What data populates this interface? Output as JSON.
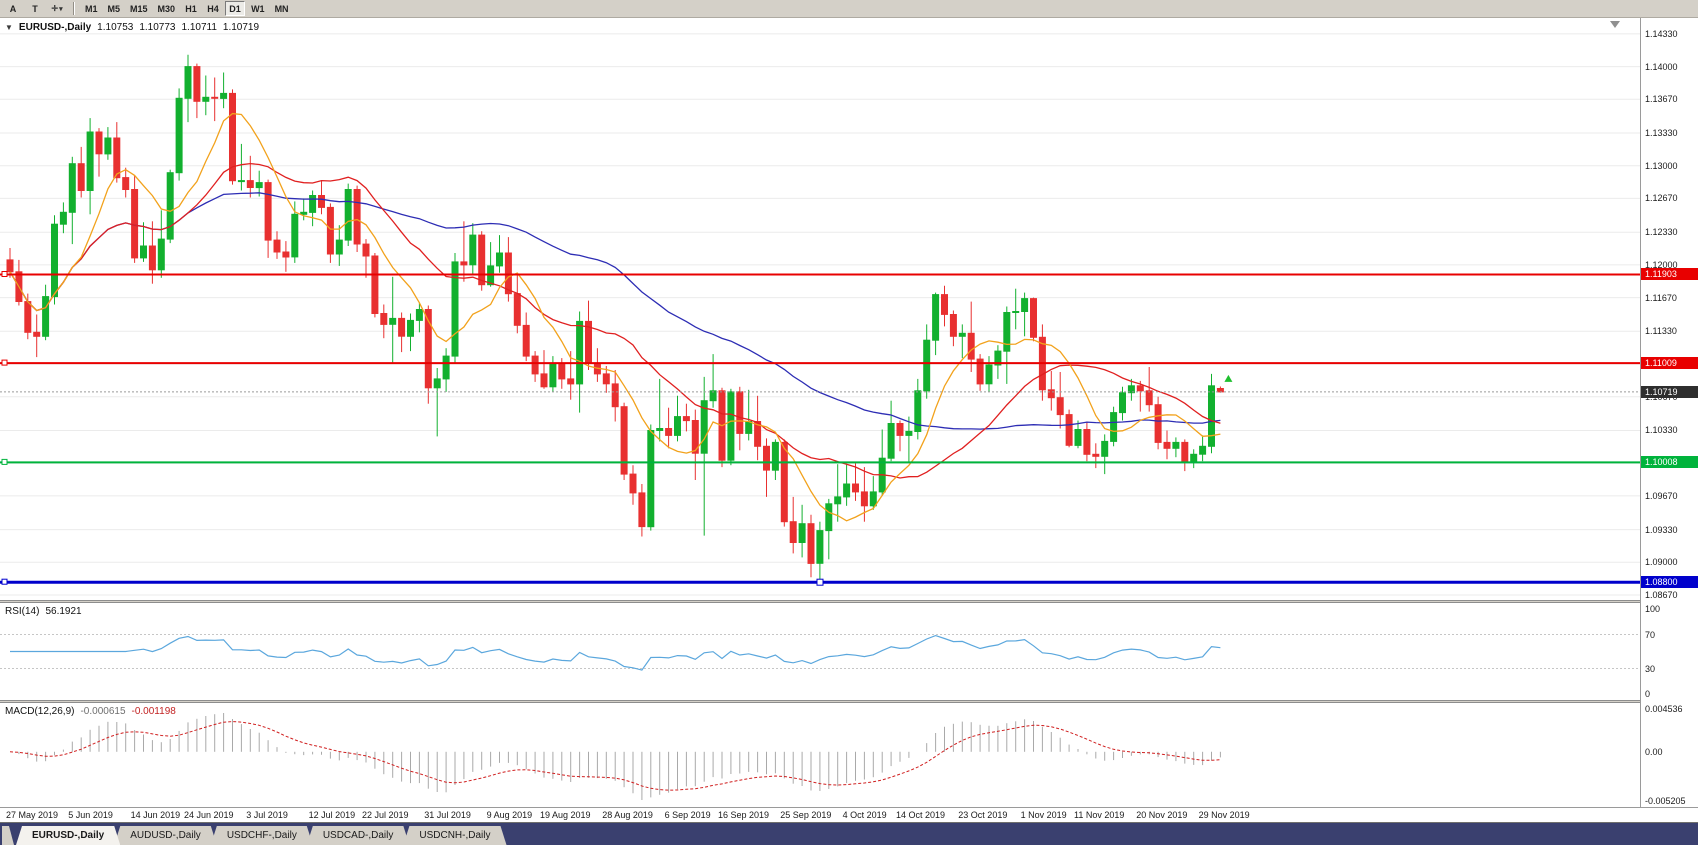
{
  "toolbar": {
    "buttons": [
      "A",
      "T"
    ],
    "timeframes": [
      "M1",
      "M5",
      "M15",
      "M30",
      "H1",
      "H4",
      "D1",
      "W1",
      "MN"
    ],
    "active_timeframe": "D1"
  },
  "chart": {
    "symbol_label": "EURUSD-,Daily",
    "ohlc": {
      "open": "1.10753",
      "high": "1.10773",
      "low": "1.10711",
      "close": "1.10719"
    },
    "up_color": "#12b02f",
    "down_color": "#e83030",
    "axis": {
      "max": 1.1449,
      "min": 1.0862,
      "ticks": [
        "1.14330",
        "1.14000",
        "1.13670",
        "1.13330",
        "1.13000",
        "1.12670",
        "1.12330",
        "1.12000",
        "1.11670",
        "1.11330",
        "1.11000",
        "1.10670",
        "1.10330",
        "1.10000",
        "1.09670",
        "1.09330",
        "1.09000",
        "1.08670"
      ]
    },
    "current_price": {
      "value": 1.10719,
      "label": "1.10719",
      "box_color": "#2e2e2e"
    },
    "hlines": [
      {
        "price": 1.11903,
        "label": "1.11903",
        "color": "#e80000",
        "stroke": 2,
        "handles": false
      },
      {
        "price": 1.11009,
        "label": "1.11009",
        "color": "#e80000",
        "stroke": 2,
        "handles": false
      },
      {
        "price": 1.10008,
        "label": "1.10008",
        "color": "#00b33c",
        "stroke": 2,
        "handles": false
      },
      {
        "price": 1.088,
        "label": "1.08800",
        "color": "#0000cc",
        "stroke": 3,
        "handles": true
      }
    ],
    "ma": [
      {
        "name": "ma-slow",
        "period": 50,
        "color": "#2d2db4"
      },
      {
        "name": "ma-mid",
        "period": 21,
        "color": "#e02020"
      },
      {
        "name": "ma-fast",
        "period": 8,
        "color": "#f2a21c"
      }
    ],
    "marker": {
      "index": 136.9,
      "price": 1.1085,
      "color": "#1fbf2f"
    },
    "candles": [
      [
        1.1205,
        1.1217,
        1.1187,
        1.1193
      ],
      [
        1.1193,
        1.1205,
        1.1159,
        1.1163
      ],
      [
        1.1163,
        1.1171,
        1.1125,
        1.1132
      ],
      [
        1.1132,
        1.115,
        1.1107,
        1.1128
      ],
      [
        1.1128,
        1.118,
        1.1124,
        1.1168
      ],
      [
        1.1168,
        1.125,
        1.116,
        1.1241
      ],
      [
        1.1241,
        1.1263,
        1.1232,
        1.1253
      ],
      [
        1.1253,
        1.1309,
        1.1221,
        1.1302
      ],
      [
        1.1302,
        1.1319,
        1.1268,
        1.1275
      ],
      [
        1.1275,
        1.1348,
        1.1251,
        1.1334
      ],
      [
        1.1334,
        1.1338,
        1.1289,
        1.1312
      ],
      [
        1.1312,
        1.1339,
        1.1306,
        1.1328
      ],
      [
        1.1328,
        1.1344,
        1.1283,
        1.1288
      ],
      [
        1.1288,
        1.1298,
        1.1268,
        1.1276
      ],
      [
        1.1276,
        1.129,
        1.1202,
        1.1207
      ],
      [
        1.1207,
        1.1243,
        1.1203,
        1.1219
      ],
      [
        1.1219,
        1.1244,
        1.1181,
        1.1195
      ],
      [
        1.1195,
        1.1255,
        1.1187,
        1.1226
      ],
      [
        1.1226,
        1.1296,
        1.1222,
        1.1293
      ],
      [
        1.1293,
        1.1378,
        1.1285,
        1.1368
      ],
      [
        1.1368,
        1.1412,
        1.1344,
        1.14
      ],
      [
        1.14,
        1.1403,
        1.1348,
        1.1365
      ],
      [
        1.1365,
        1.1391,
        1.1351,
        1.1369
      ],
      [
        1.1369,
        1.1389,
        1.1345,
        1.1368
      ],
      [
        1.1368,
        1.1394,
        1.1358,
        1.1373
      ],
      [
        1.1373,
        1.1377,
        1.1281,
        1.1285
      ],
      [
        1.1285,
        1.1322,
        1.1275,
        1.1285
      ],
      [
        1.1285,
        1.131,
        1.1268,
        1.1278
      ],
      [
        1.1278,
        1.1295,
        1.1269,
        1.1283
      ],
      [
        1.1283,
        1.1286,
        1.1207,
        1.1225
      ],
      [
        1.1225,
        1.1234,
        1.1206,
        1.1213
      ],
      [
        1.1213,
        1.1224,
        1.1193,
        1.1208
      ],
      [
        1.1208,
        1.1264,
        1.1202,
        1.1251
      ],
      [
        1.1251,
        1.1267,
        1.1245,
        1.1253
      ],
      [
        1.1253,
        1.1275,
        1.1239,
        1.127
      ],
      [
        1.127,
        1.1285,
        1.1251,
        1.1258
      ],
      [
        1.1258,
        1.1262,
        1.1202,
        1.1211
      ],
      [
        1.1211,
        1.124,
        1.1199,
        1.1225
      ],
      [
        1.1225,
        1.1282,
        1.1219,
        1.1276
      ],
      [
        1.1276,
        1.128,
        1.1213,
        1.1221
      ],
      [
        1.1221,
        1.1226,
        1.1187,
        1.1209
      ],
      [
        1.1209,
        1.1212,
        1.1147,
        1.1151
      ],
      [
        1.1151,
        1.116,
        1.1126,
        1.114
      ],
      [
        1.114,
        1.1188,
        1.1101,
        1.1146
      ],
      [
        1.1146,
        1.1152,
        1.1112,
        1.1128
      ],
      [
        1.1128,
        1.1151,
        1.1113,
        1.1144
      ],
      [
        1.1144,
        1.1162,
        1.1132,
        1.1155
      ],
      [
        1.1155,
        1.1159,
        1.106,
        1.1076
      ],
      [
        1.1076,
        1.1096,
        1.1027,
        1.1085
      ],
      [
        1.1085,
        1.1116,
        1.1072,
        1.1108
      ],
      [
        1.1108,
        1.1212,
        1.1101,
        1.1203
      ],
      [
        1.1203,
        1.1244,
        1.1183,
        1.12
      ],
      [
        1.12,
        1.1242,
        1.1191,
        1.123
      ],
      [
        1.123,
        1.1234,
        1.1174,
        1.118
      ],
      [
        1.118,
        1.1223,
        1.1178,
        1.1199
      ],
      [
        1.1199,
        1.123,
        1.1192,
        1.1212
      ],
      [
        1.1212,
        1.1228,
        1.1163,
        1.1171
      ],
      [
        1.1171,
        1.119,
        1.1131,
        1.1139
      ],
      [
        1.1139,
        1.1152,
        1.1103,
        1.1108
      ],
      [
        1.1108,
        1.1113,
        1.1082,
        1.109
      ],
      [
        1.109,
        1.1114,
        1.1075,
        1.1077
      ],
      [
        1.1077,
        1.1108,
        1.1072,
        1.11
      ],
      [
        1.11,
        1.1106,
        1.1075,
        1.1085
      ],
      [
        1.1085,
        1.1113,
        1.1064,
        1.108
      ],
      [
        1.108,
        1.1153,
        1.1051,
        1.1143
      ],
      [
        1.1143,
        1.1164,
        1.1094,
        1.1101
      ],
      [
        1.1101,
        1.1116,
        1.1082,
        1.109
      ],
      [
        1.109,
        1.1098,
        1.1071,
        1.108
      ],
      [
        1.108,
        1.1094,
        1.1042,
        1.1057
      ],
      [
        1.1057,
        1.1061,
        1.0983,
        1.0989
      ],
      [
        1.0989,
        1.0998,
        1.0958,
        1.097
      ],
      [
        1.097,
        1.0979,
        1.0926,
        1.0936
      ],
      [
        1.0936,
        1.1039,
        1.0932,
        1.1033
      ],
      [
        1.1033,
        1.1085,
        1.1022,
        1.1035
      ],
      [
        1.1035,
        1.1056,
        1.1015,
        1.1028
      ],
      [
        1.1028,
        1.1068,
        1.1022,
        1.1047
      ],
      [
        1.1047,
        1.106,
        1.1032,
        1.1043
      ],
      [
        1.1043,
        1.1054,
        1.0983,
        1.101
      ],
      [
        1.101,
        1.1087,
        1.0927,
        1.1063
      ],
      [
        1.1063,
        1.111,
        1.1056,
        1.1073
      ],
      [
        1.1073,
        1.1076,
        1.0996,
        1.1003
      ],
      [
        1.1003,
        1.1075,
        1.0998,
        1.1072
      ],
      [
        1.1072,
        1.1077,
        1.1013,
        1.103
      ],
      [
        1.103,
        1.1074,
        1.1023,
        1.1042
      ],
      [
        1.1042,
        1.1068,
        1.1003,
        1.1017
      ],
      [
        1.1017,
        1.1025,
        1.0966,
        1.0993
      ],
      [
        1.0993,
        1.1024,
        1.0983,
        1.1021
      ],
      [
        1.1021,
        1.1024,
        1.0936,
        1.0941
      ],
      [
        1.0941,
        1.0966,
        1.0909,
        1.092
      ],
      [
        1.092,
        1.0958,
        1.0905,
        1.0939
      ],
      [
        1.0939,
        1.0948,
        1.0885,
        1.0899
      ],
      [
        1.0899,
        1.0941,
        1.0879,
        1.0932
      ],
      [
        1.0932,
        1.0964,
        1.0903,
        1.0959
      ],
      [
        1.0959,
        1.0999,
        1.0941,
        1.0966
      ],
      [
        1.0966,
        1.0999,
        1.0957,
        1.0979
      ],
      [
        1.0979,
        1.1,
        1.0962,
        1.0971
      ],
      [
        1.0971,
        1.0996,
        1.0941,
        1.0957
      ],
      [
        1.0957,
        1.0987,
        1.0953,
        1.0971
      ],
      [
        1.0971,
        1.1034,
        1.0967,
        1.1005
      ],
      [
        1.1005,
        1.1063,
        1.1002,
        1.104
      ],
      [
        1.104,
        1.1043,
        1.1012,
        1.1028
      ],
      [
        1.1028,
        1.1047,
        1.1001,
        1.1032
      ],
      [
        1.1032,
        1.1085,
        1.1024,
        1.1073
      ],
      [
        1.1073,
        1.114,
        1.1065,
        1.1124
      ],
      [
        1.1124,
        1.1172,
        1.1109,
        1.117
      ],
      [
        1.117,
        1.1179,
        1.1138,
        1.115
      ],
      [
        1.115,
        1.1154,
        1.1118,
        1.1128
      ],
      [
        1.1128,
        1.114,
        1.1106,
        1.1131
      ],
      [
        1.1131,
        1.1163,
        1.1092,
        1.1105
      ],
      [
        1.1105,
        1.111,
        1.1073,
        1.108
      ],
      [
        1.108,
        1.1108,
        1.1072,
        1.1099
      ],
      [
        1.1099,
        1.1119,
        1.1085,
        1.1113
      ],
      [
        1.1113,
        1.1158,
        1.108,
        1.1152
      ],
      [
        1.1152,
        1.1176,
        1.1135,
        1.1153
      ],
      [
        1.1153,
        1.1172,
        1.1128,
        1.1166
      ],
      [
        1.1166,
        1.1167,
        1.1123,
        1.1127
      ],
      [
        1.1127,
        1.114,
        1.1063,
        1.1074
      ],
      [
        1.1074,
        1.1093,
        1.1053,
        1.1066
      ],
      [
        1.1066,
        1.1092,
        1.1035,
        1.1049
      ],
      [
        1.1049,
        1.1054,
        1.1016,
        1.1018
      ],
      [
        1.1018,
        1.1043,
        1.1015,
        1.1034
      ],
      [
        1.1034,
        1.1042,
        1.1002,
        1.1009
      ],
      [
        1.1009,
        1.102,
        1.0995,
        1.1007
      ],
      [
        1.1007,
        1.1029,
        1.0989,
        1.1022
      ],
      [
        1.1022,
        1.1057,
        1.1017,
        1.1051
      ],
      [
        1.1051,
        1.1077,
        1.1043,
        1.1071
      ],
      [
        1.1071,
        1.1085,
        1.1063,
        1.1078
      ],
      [
        1.1078,
        1.1083,
        1.1052,
        1.1073
      ],
      [
        1.1073,
        1.1097,
        1.1052,
        1.1059
      ],
      [
        1.1059,
        1.1067,
        1.1014,
        1.1021
      ],
      [
        1.1021,
        1.1033,
        1.1004,
        1.1015
      ],
      [
        1.1015,
        1.1026,
        1.1006,
        1.1021
      ],
      [
        1.1021,
        1.1024,
        1.0992,
        1.1002
      ],
      [
        1.1002,
        1.1014,
        1.0995,
        1.1009
      ],
      [
        1.1009,
        1.1028,
        1.1002,
        1.1017
      ],
      [
        1.1017,
        1.109,
        1.101,
        1.1078
      ],
      [
        1.10753,
        1.10773,
        1.10711,
        1.10719
      ]
    ],
    "date_labels": [
      {
        "text": "27 May 2019",
        "index": 0
      },
      {
        "text": "5 Jun 2019",
        "index": 7
      },
      {
        "text": "14 Jun 2019",
        "index": 14
      },
      {
        "text": "24 Jun 2019",
        "index": 20
      },
      {
        "text": "3 Jul 2019",
        "index": 27
      },
      {
        "text": "12 Jul 2019",
        "index": 34
      },
      {
        "text": "22 Jul 2019",
        "index": 40
      },
      {
        "text": "31 Jul 2019",
        "index": 47
      },
      {
        "text": "9 Aug 2019",
        "index": 54
      },
      {
        "text": "19 Aug 2019",
        "index": 60
      },
      {
        "text": "28 Aug 2019",
        "index": 67
      },
      {
        "text": "6 Sep 2019",
        "index": 74
      },
      {
        "text": "16 Sep 2019",
        "index": 80
      },
      {
        "text": "25 Sep 2019",
        "index": 87
      },
      {
        "text": "4 Oct 2019",
        "index": 94
      },
      {
        "text": "14 Oct 2019",
        "index": 100
      },
      {
        "text": "23 Oct 2019",
        "index": 107
      },
      {
        "text": "1 Nov 2019",
        "index": 114
      },
      {
        "text": "11 Nov 2019",
        "index": 120
      },
      {
        "text": "20 Nov 2019",
        "index": 127
      },
      {
        "text": "29 Nov 2019",
        "index": 134
      }
    ]
  },
  "rsi": {
    "label": "RSI(14)",
    "value": "56.1921",
    "period": 14,
    "color": "#5ba7dd",
    "levels": [
      {
        "label": "100",
        "value": 100,
        "dotted": false
      },
      {
        "label": "70",
        "value": 70,
        "dotted": true
      },
      {
        "label": "30",
        "value": 30,
        "dotted": true
      },
      {
        "label": "0",
        "value": 0,
        "dotted": false
      }
    ]
  },
  "macd": {
    "label": "MACD(12,26,9)",
    "values": [
      "-0.000615",
      "-0.001198"
    ],
    "max": 0.004536,
    "min": -0.005205,
    "histogram_color": "#a9a9a9",
    "signal_color": "#d02020",
    "axis": [
      {
        "label": "0.004536",
        "value": 0.004536
      },
      {
        "label": "0.00",
        "value": 0
      },
      {
        "label": "-0.005205",
        "value": -0.005205
      }
    ]
  },
  "tabs": [
    {
      "label": "EURUSD-,Daily",
      "active": true
    },
    {
      "label": "AUDUSD-,Daily",
      "active": false
    },
    {
      "label": "USDCHF-,Daily",
      "active": false
    },
    {
      "label": "USDCAD-,Daily",
      "active": false
    },
    {
      "label": "USDCNH-,Daily",
      "active": false
    }
  ]
}
